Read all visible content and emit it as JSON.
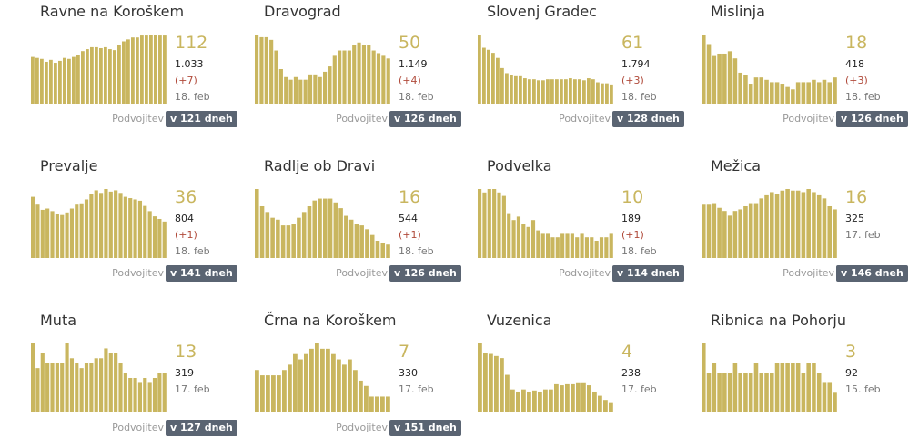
{
  "colors": {
    "bar": "#c9b65f",
    "badge": "#5a6472",
    "delta": "#b04a3a"
  },
  "doubling_label": "Podvojitev",
  "chart_data": [
    {
      "type": "bar",
      "title": "Ravne na Koroškem",
      "value": "112",
      "total": "1.033",
      "delta": "(+7)",
      "date": "18. feb",
      "doubling": "v 121 dneh",
      "values": [
        48,
        47,
        46,
        43,
        45,
        42,
        44,
        47,
        46,
        48,
        50,
        54,
        56,
        58,
        58,
        57,
        58,
        56,
        55,
        60,
        64,
        66,
        68,
        68,
        70,
        70,
        71,
        71,
        70,
        70
      ]
    },
    {
      "type": "bar",
      "title": "Dravograd",
      "value": "50",
      "total": "1.149",
      "delta": "(+4)",
      "date": "18. feb",
      "doubling": "v 126 dneh",
      "values": [
        26,
        25,
        25,
        24,
        20,
        13,
        10,
        9,
        10,
        9,
        9,
        11,
        11,
        10,
        12,
        14,
        18,
        20,
        20,
        20,
        22,
        23,
        22,
        22,
        20,
        19,
        18,
        17
      ]
    },
    {
      "type": "bar",
      "title": "Slovenj Gradec",
      "value": "61",
      "total": "1.794",
      "delta": "(+3)",
      "date": "18. feb",
      "doubling": "v 128 dneh",
      "values": [
        68,
        55,
        53,
        50,
        45,
        35,
        30,
        28,
        27,
        27,
        25,
        24,
        24,
        23,
        23,
        24,
        24,
        24,
        24,
        24,
        25,
        24,
        24,
        23,
        25,
        24,
        21,
        20,
        20,
        18
      ]
    },
    {
      "type": "bar",
      "title": "Mislinja",
      "value": "18",
      "total": "418",
      "delta": "(+3)",
      "date": "18. feb",
      "doubling": "v 126 dneh",
      "values": [
        29,
        25,
        20,
        21,
        21,
        22,
        19,
        13,
        12,
        8,
        11,
        11,
        10,
        9,
        9,
        8,
        7,
        6,
        9,
        9,
        9,
        10,
        9,
        10,
        9,
        11
      ]
    },
    {
      "type": "bar",
      "title": "Prevalje",
      "value": "36",
      "total": "804",
      "delta": "(+1)",
      "date": "18. feb",
      "doubling": "v 141 dneh",
      "values": [
        47,
        41,
        37,
        38,
        36,
        34,
        33,
        35,
        38,
        41,
        42,
        45,
        49,
        52,
        50,
        53,
        51,
        52,
        50,
        47,
        46,
        45,
        44,
        40,
        36,
        32,
        30,
        28
      ]
    },
    {
      "type": "bar",
      "title": "Radlje ob Dravi",
      "value": "16",
      "total": "544",
      "delta": "(+1)",
      "date": "18. feb",
      "doubling": "v 126 dneh",
      "values": [
        36,
        27,
        24,
        21,
        20,
        17,
        17,
        18,
        21,
        24,
        27,
        30,
        31,
        31,
        31,
        29,
        26,
        22,
        20,
        18,
        17,
        15,
        12,
        9,
        8,
        7
      ]
    },
    {
      "type": "bar",
      "title": "Podvelka",
      "value": "10",
      "total": "189",
      "delta": "(+1)",
      "date": "18. feb",
      "doubling": "v 114 dneh",
      "values": [
        20,
        19,
        20,
        20,
        19,
        18,
        13,
        11,
        12,
        10,
        9,
        11,
        8,
        7,
        7,
        6,
        6,
        7,
        7,
        7,
        6,
        7,
        6,
        6,
        5,
        6,
        6,
        7
      ]
    },
    {
      "type": "bar",
      "title": "Mežica",
      "value": "16",
      "total": "325",
      "delta": "",
      "date": "17. feb",
      "doubling": "v 146 dneh",
      "values": [
        34,
        34,
        35,
        32,
        30,
        27,
        30,
        31,
        33,
        35,
        35,
        38,
        40,
        42,
        41,
        43,
        44,
        43,
        43,
        42,
        44,
        42,
        40,
        38,
        33,
        31
      ]
    },
    {
      "type": "bar",
      "title": "Muta",
      "value": "13",
      "total": "319",
      "date": "17. feb",
      "delta": "",
      "doubling": "v 127 dneh",
      "values": [
        14,
        9,
        12,
        10,
        10,
        10,
        10,
        14,
        11,
        10,
        9,
        10,
        10,
        11,
        11,
        13,
        12,
        12,
        10,
        8,
        7,
        7,
        6,
        7,
        6,
        7,
        8,
        8
      ]
    },
    {
      "type": "bar",
      "title": "Črna na Koroškem",
      "value": "7",
      "total": "330",
      "date": "17. feb",
      "delta": "",
      "doubling": "v 151 dneh",
      "values": [
        8,
        7,
        7,
        7,
        7,
        8,
        9,
        11,
        10,
        11,
        12,
        13,
        12,
        12,
        11,
        10,
        9,
        10,
        8,
        6,
        5,
        3,
        3,
        3,
        3
      ]
    },
    {
      "type": "bar",
      "title": "Vuzenica",
      "value": "4",
      "total": "238",
      "date": "17. feb",
      "delta": "",
      "doubling": "",
      "values": [
        66,
        57,
        56,
        54,
        52,
        36,
        22,
        20,
        22,
        20,
        21,
        20,
        22,
        22,
        27,
        26,
        27,
        27,
        28,
        28,
        26,
        20,
        16,
        12,
        9
      ]
    },
    {
      "type": "bar",
      "title": "Ribnica na Pohorju",
      "value": "3",
      "total": "92",
      "date": "15. feb",
      "delta": "",
      "doubling": "",
      "values": [
        7,
        4,
        5,
        4,
        4,
        4,
        5,
        4,
        4,
        4,
        5,
        4,
        4,
        4,
        5,
        5,
        5,
        5,
        5,
        4,
        5,
        5,
        4,
        3,
        3,
        2
      ]
    }
  ]
}
